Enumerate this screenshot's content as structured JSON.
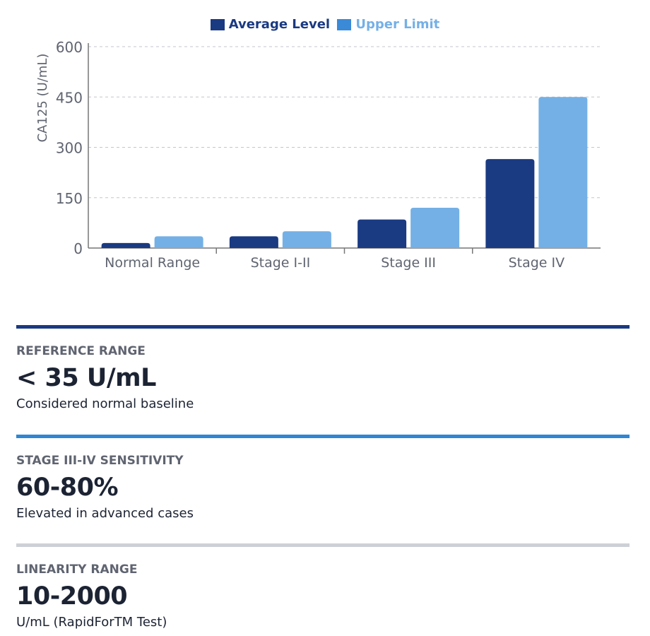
{
  "chart_data": {
    "type": "bar",
    "categories": [
      "Normal Range",
      "Stage I-II",
      "Stage III",
      "Stage IV"
    ],
    "series": [
      {
        "name": "Average Level",
        "values": [
          15,
          35,
          85,
          265
        ],
        "color": "#1a3a82"
      },
      {
        "name": "Upper Limit",
        "values": [
          35,
          50,
          120,
          450
        ],
        "color": "#74b0e6"
      }
    ],
    "ylabel": "CA125 (U/mL)",
    "xlabel": "",
    "ylim": [
      0,
      600
    ],
    "yticks": [
      0,
      150,
      300,
      450,
      600
    ],
    "grid": true,
    "legend": "top"
  },
  "legend_text_colors": {
    "avg": "#1a3a82",
    "upper": "#74b0e6"
  },
  "stats": [
    {
      "label": "REFERENCE RANGE",
      "value": "< 35 U/mL",
      "desc": "Considered normal baseline",
      "color": "#1a3a82"
    },
    {
      "label": "STAGE III-IV SENSITIVITY",
      "value": "60-80%",
      "desc": "Elevated in advanced cases",
      "color": "#2f86d4"
    },
    {
      "label": "LINEARITY RANGE",
      "value": "10-2000",
      "desc": "U/mL (RapidForTM Test)",
      "color": "#cdd0d6"
    }
  ]
}
